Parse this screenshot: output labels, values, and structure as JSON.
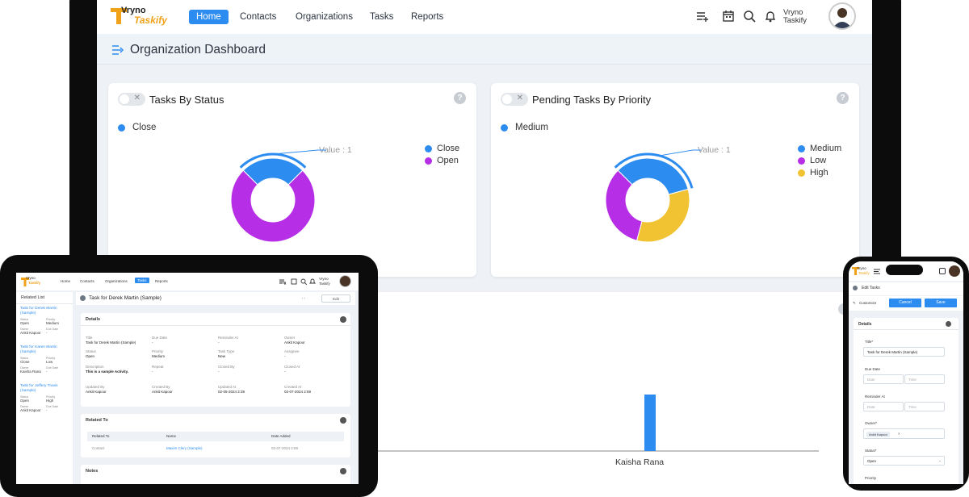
{
  "brand": {
    "line1": "Vryno",
    "line2": "Taskify"
  },
  "laptop": {
    "nav": [
      "Home",
      "Contacts",
      "Organizations",
      "Tasks",
      "Reports"
    ],
    "user": {
      "line1": "Vryno",
      "line2": "Taskify"
    },
    "page_title": "Organization Dashboard",
    "card1": {
      "title": "Tasks By Status",
      "selected": "Close",
      "tooltip": "Value : 1",
      "legend": [
        "Close",
        "Open"
      ]
    },
    "card2": {
      "title": "Pending Tasks By Priority",
      "selected": "Medium",
      "tooltip": "Value : 1",
      "legend": [
        "Medium",
        "Low",
        "High"
      ]
    },
    "bar_label": "Kaisha Rana",
    "colors": {
      "blue": "#2d8cf0",
      "purple": "#b62ee6",
      "yellow": "#f1c232"
    }
  },
  "chart_data": [
    {
      "type": "pie",
      "title": "Tasks By Status",
      "categories": [
        "Close",
        "Open"
      ],
      "values": [
        1,
        3
      ]
    },
    {
      "type": "pie",
      "title": "Pending Tasks By Priority",
      "categories": [
        "Medium",
        "Low",
        "High"
      ],
      "values": [
        1,
        1,
        1
      ]
    },
    {
      "type": "bar",
      "categories": [
        "Kaisha Rana"
      ],
      "values": [
        1
      ]
    }
  ],
  "tablet": {
    "nav": [
      "Home",
      "Contacts",
      "Organizations",
      "Tasks",
      "Reports"
    ],
    "user": {
      "line1": "Vryno",
      "line2": "Taskify"
    },
    "related_list": "Related List",
    "items": [
      {
        "title": "Task for Derek Martin (Sample)",
        "status_l": "Status",
        "status": "Open",
        "priority_l": "Priority",
        "priority": "Medium",
        "owner_l": "Owner",
        "owner": "Ankit Kapoor",
        "due_l": "Due Date",
        "due": "-"
      },
      {
        "title": "Task for Karen Martin (Sample)",
        "status_l": "Status",
        "status": "Close",
        "priority_l": "Priority",
        "priority": "Low",
        "owner_l": "Owner",
        "owner": "Kaisha Rana",
        "due_l": "Due Date",
        "due": "-"
      },
      {
        "title": "Task for Jeffery Travis (Sample)",
        "status_l": "Status",
        "status": "Open",
        "priority_l": "Priority",
        "priority": "High",
        "owner_l": "Owner",
        "owner": "Ankit Kapoor",
        "due_l": "Due Date",
        "due": "-"
      }
    ],
    "record_title": "Task for Derek Martin (Sample)",
    "edit": "Edit",
    "details": "Details",
    "fields": [
      {
        "l": "Title",
        "v": "Task for Derek Martin (Sample)"
      },
      {
        "l": "Due Date",
        "v": "-"
      },
      {
        "l": "Reminder At",
        "v": "-"
      },
      {
        "l": "Owner",
        "v": "Ankit Kapoor"
      },
      {
        "l": "Status",
        "v": "Open"
      },
      {
        "l": "Priority",
        "v": "Medium"
      },
      {
        "l": "Task Type",
        "v": "New"
      },
      {
        "l": "Assignee",
        "v": "-"
      },
      {
        "l": "Description",
        "v": "This is a sample Activity."
      },
      {
        "l": "Repeat",
        "v": "-"
      },
      {
        "l": "Closed By",
        "v": "-"
      },
      {
        "l": "Closed At",
        "v": "-"
      },
      {
        "l": "Updated By",
        "v": "Ankit Kapoor"
      },
      {
        "l": "Created By",
        "v": "Ankit Kapoor"
      },
      {
        "l": "Updated At",
        "v": "02-05-2024 2:39"
      },
      {
        "l": "Created At",
        "v": "02-07-2024 2:59"
      }
    ],
    "related_to": "Related To",
    "rel_headers": [
      "Related To",
      "Name",
      "Date Added"
    ],
    "rel_row": [
      "Contact",
      "Maxim Clery (Sample)",
      "02-07-2024 2:59"
    ],
    "notes": "Notes"
  },
  "phone": {
    "edit_tasks": "Edit Tasks",
    "customize": "Customize",
    "cancel": "Cancel",
    "save": "Save",
    "details": "Details",
    "title_l": "Title*",
    "title_v": "Task for Derek Martin (Sample)",
    "due_l": "Due Date",
    "date_ph": "Date",
    "time_ph": "Time",
    "reminder_l": "Reminder At",
    "owner_l": "Owner*",
    "owner_v": "Ankit Kapoor",
    "status_l": "Status*",
    "status_v": "Open",
    "priority_l": "Priority"
  }
}
